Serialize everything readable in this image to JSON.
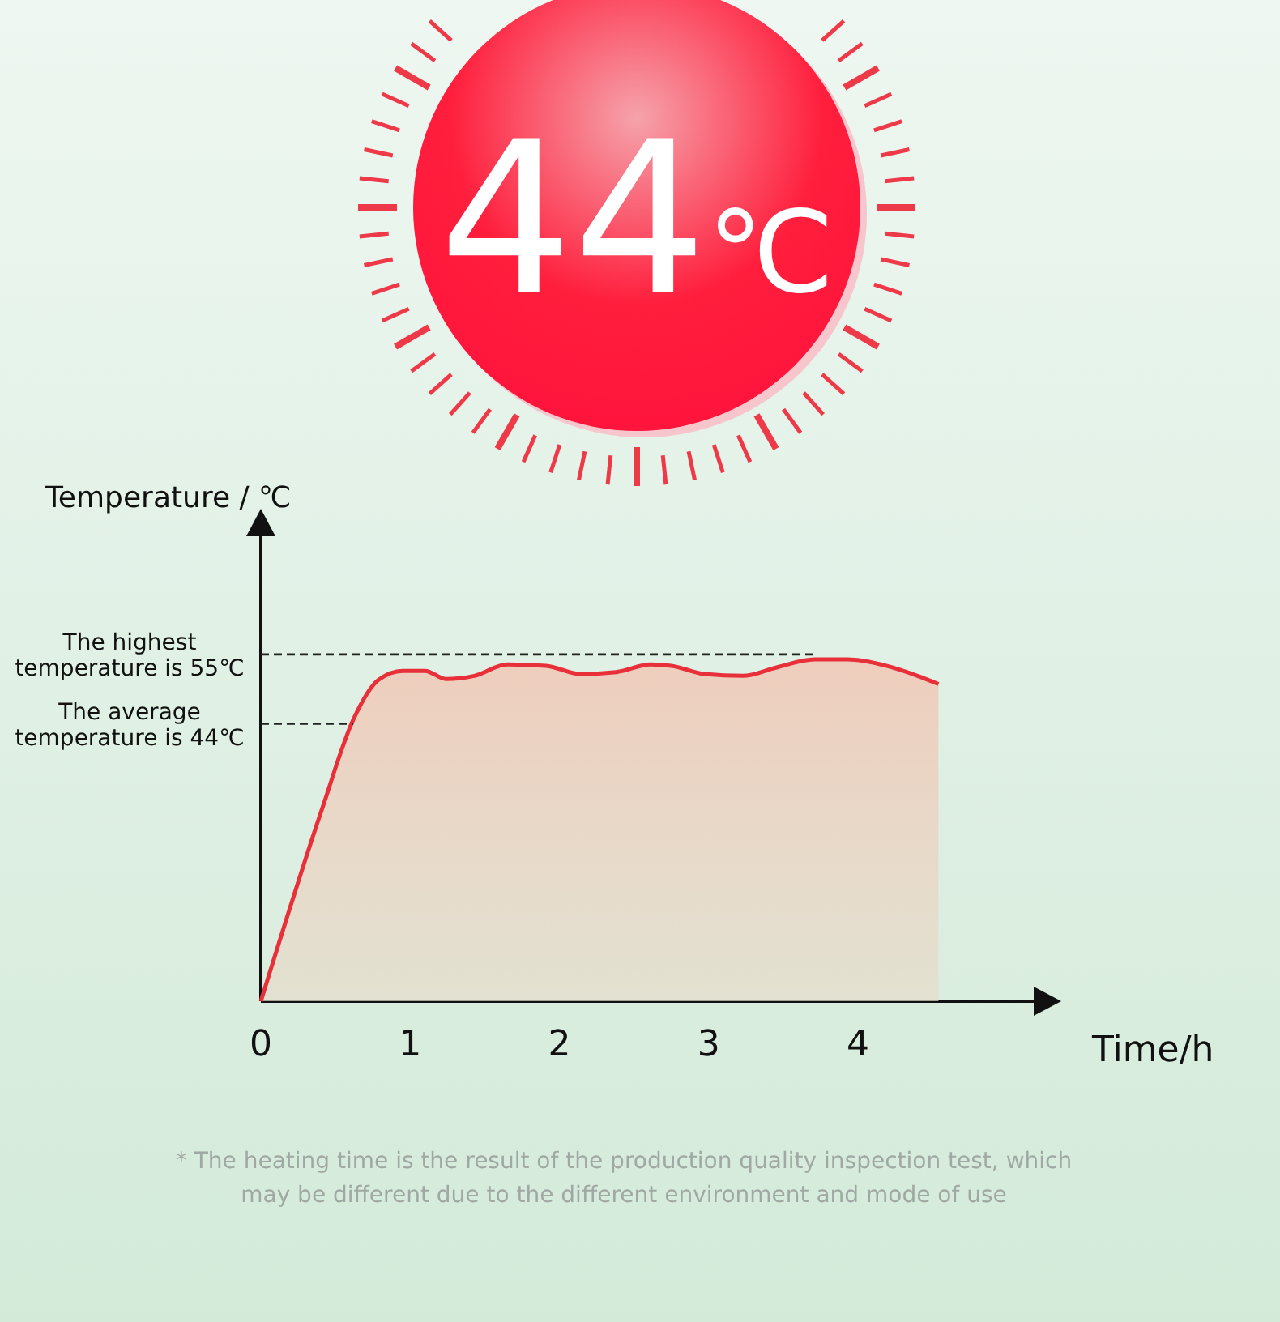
{
  "chart_data": {
    "type": "area",
    "xlabel": "Time/h",
    "ylabel": "Temperature / ℃",
    "xlim": [
      0,
      5.2
    ],
    "ylim": [
      0,
      74
    ],
    "xticks": [
      0,
      1,
      2,
      3,
      4
    ],
    "series": [
      {
        "color": "#e8303a",
        "x": [
          0,
          0.41,
          0.62,
          0.79,
          0.95,
          1.1,
          1.24,
          1.43,
          1.65,
          1.91,
          2.14,
          2.38,
          2.61,
          2.75,
          2.97,
          3.23,
          3.45,
          3.71,
          3.93,
          4.19,
          4.4,
          4.54
        ],
        "values": [
          0,
          30.5,
          44.7,
          51,
          52.4,
          52.4,
          51.1,
          51.6,
          53.4,
          53.2,
          51.9,
          52.2,
          53.4,
          53.2,
          51.9,
          51.6,
          52.9,
          54.2,
          54.2,
          53.2,
          51.6,
          50.3
        ]
      }
    ],
    "ref_lines": [
      {
        "axis": "y",
        "value": 55,
        "label": "The highest temperature is 55℃",
        "line_style": "dashed",
        "color": "#222222"
      },
      {
        "axis": "y",
        "value": 44,
        "label": "The average temperature is 44℃",
        "line_style": "dashed",
        "color": "#222222"
      }
    ],
    "annotations": [
      "44℃",
      "* The heating time is the result of the production quality inspection test, which may be different due to the different environment and mode of use"
    ]
  }
}
